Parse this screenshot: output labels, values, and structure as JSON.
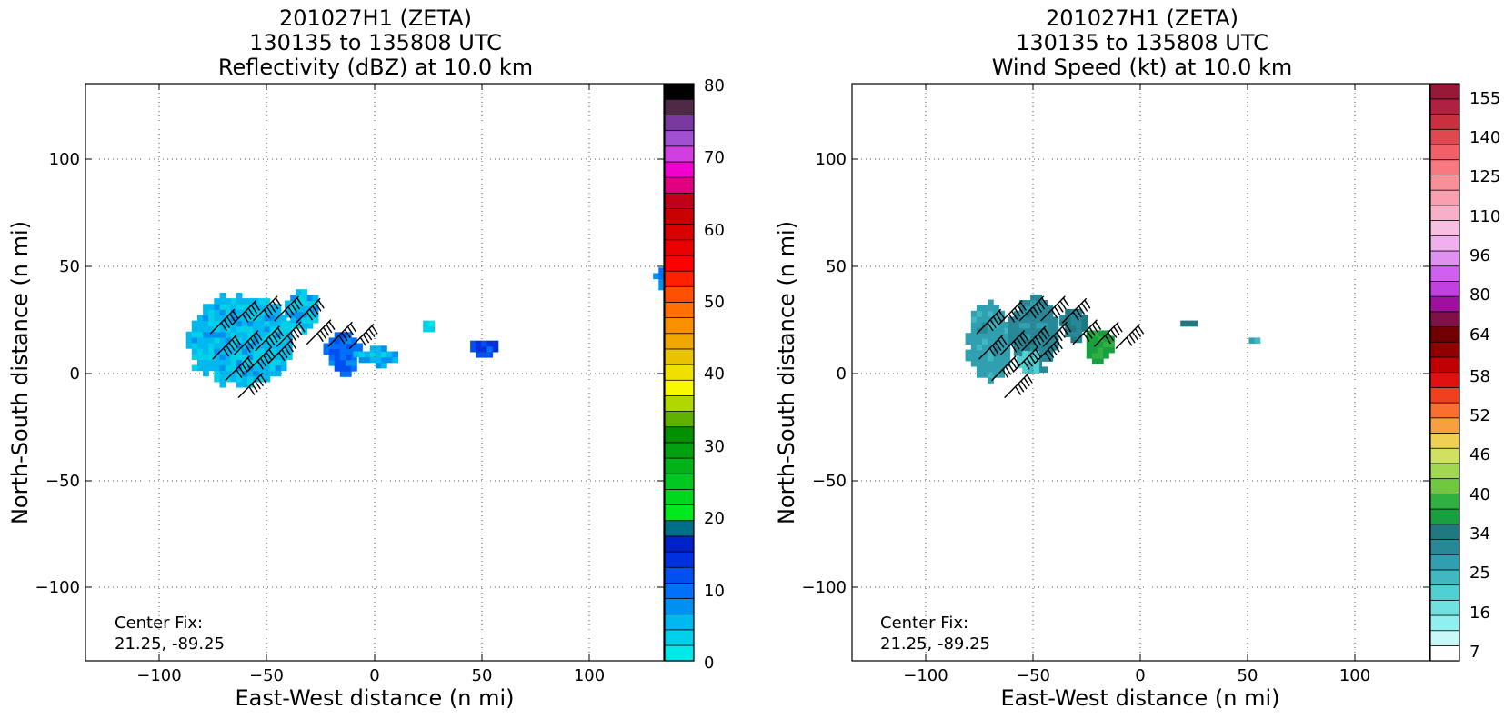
{
  "figure": {
    "panels": [
      {
        "title_lines": [
          "201027H1 (ZETA)",
          "130135 to 135808 UTC",
          "Reflectivity (dBZ) at 10.0 km"
        ],
        "xlabel": "East-West distance (n mi)",
        "ylabel": "North-South distance (n mi)",
        "x_ticks": [
          "−100",
          "−50",
          "0",
          "50",
          "100"
        ],
        "y_ticks": [
          "100",
          "50",
          "0",
          "−50",
          "−100"
        ],
        "center_fix": [
          "Center Fix:",
          "21.25, -89.25"
        ],
        "colorbar_labels": [
          "80",
          "70",
          "60",
          "50",
          "40",
          "30",
          "20",
          "10",
          "0"
        ]
      },
      {
        "title_lines": [
          "201027H1 (ZETA)",
          "130135 to 135808 UTC",
          "Wind Speed (kt) at 10.0 km"
        ],
        "xlabel": "East-West distance (n mi)",
        "ylabel": "North-South distance (n mi)",
        "x_ticks": [
          "−100",
          "−50",
          "0",
          "50",
          "100"
        ],
        "y_ticks": [
          "100",
          "50",
          "0",
          "−50",
          "−100"
        ],
        "center_fix": [
          "Center Fix:",
          "21.25, -89.25"
        ],
        "colorbar_labels": [
          "155",
          "140",
          "125",
          "110",
          "96",
          "80",
          "64",
          "58",
          "52",
          "46",
          "40",
          "34",
          "25",
          "16",
          "7"
        ]
      }
    ]
  },
  "chart_data": [
    {
      "type": "heatmap",
      "title": "201027H1 (ZETA) 130135 to 135808 UTC Reflectivity (dBZ) at 10.0 km",
      "xlabel": "East-West distance (n mi)",
      "ylabel": "North-South distance (n mi)",
      "xlim": [
        -135,
        135
      ],
      "ylim": [
        -135,
        135
      ],
      "x_ticks": [
        -100,
        -50,
        0,
        50,
        100
      ],
      "y_ticks": [
        -100,
        -50,
        0,
        50,
        100
      ],
      "grid": true,
      "colorbar": {
        "ticks": [
          0,
          10,
          20,
          30,
          40,
          50,
          60,
          70,
          80
        ],
        "colors": [
          "#00e8e8",
          "#00d0e8",
          "#00b8f0",
          "#0090f0",
          "#0070f8",
          "#0050f0",
          "#0030e0",
          "#0020c8",
          "#007088",
          "#00e820",
          "#00d820",
          "#00c820",
          "#00b418",
          "#00a010",
          "#009000",
          "#60b000",
          "#b0d800",
          "#f8f800",
          "#f0e000",
          "#e8c400",
          "#f0a800",
          "#f89000",
          "#ff7000",
          "#ff5000",
          "#ff2000",
          "#ff0000",
          "#e80000",
          "#d80000",
          "#c80000",
          "#c00018",
          "#e00080",
          "#f000d0",
          "#d040e0",
          "#a050d0",
          "#7838a0",
          "#502848",
          "#000000"
        ]
      },
      "echo_regions": [
        {
          "x": [
            -88,
            -40
          ],
          "y": [
            -7,
            35
          ],
          "dbz": 5
        },
        {
          "x": [
            -42,
            -28
          ],
          "y": [
            18,
            38
          ],
          "dbz": 5
        },
        {
          "x": [
            -24,
            -8
          ],
          "y": [
            -2,
            18
          ],
          "dbz": 10
        },
        {
          "x": [
            -10,
            10
          ],
          "y": [
            2,
            10
          ],
          "dbz": 6
        },
        {
          "x": [
            20,
            28
          ],
          "y": [
            19,
            22
          ],
          "dbz": 3
        },
        {
          "x": [
            42,
            58
          ],
          "y": [
            7,
            14
          ],
          "dbz": 12
        },
        {
          "x": [
            130,
            135
          ],
          "y": [
            36,
            48
          ],
          "dbz": 8
        }
      ],
      "wind_barbs": [
        {
          "x": -75,
          "y": 24
        },
        {
          "x": -65,
          "y": 28
        },
        {
          "x": -55,
          "y": 30
        },
        {
          "x": -45,
          "y": 30
        },
        {
          "x": -35,
          "y": 29
        },
        {
          "x": -74,
          "y": 12
        },
        {
          "x": -64,
          "y": 14
        },
        {
          "x": -54,
          "y": 16
        },
        {
          "x": -44,
          "y": 18
        },
        {
          "x": -68,
          "y": 2
        },
        {
          "x": -58,
          "y": 6
        },
        {
          "x": -48,
          "y": 10
        },
        {
          "x": -30,
          "y": 19
        },
        {
          "x": -20,
          "y": 18
        },
        {
          "x": -10,
          "y": 17
        },
        {
          "x": -62,
          "y": -6
        }
      ]
    },
    {
      "type": "heatmap",
      "title": "201027H1 (ZETA) 130135 to 135808 UTC Wind Speed (kt) at 10.0 km",
      "xlabel": "East-West distance (n mi)",
      "ylabel": "North-South distance (n mi)",
      "xlim": [
        -135,
        135
      ],
      "ylim": [
        -135,
        135
      ],
      "x_ticks": [
        -100,
        -50,
        0,
        50,
        100
      ],
      "y_ticks": [
        -100,
        -50,
        0,
        50,
        100
      ],
      "grid": true,
      "colorbar": {
        "ticks": [
          7,
          16,
          25,
          34,
          40,
          46,
          52,
          58,
          64,
          80,
          96,
          110,
          125,
          140,
          155
        ],
        "colors": [
          "#ffffff",
          "#c8f8f8",
          "#90f0f0",
          "#70e0e0",
          "#50d0d0",
          "#40b8c0",
          "#30a0b0",
          "#288898",
          "#207880",
          "#18a040",
          "#30b040",
          "#70c840",
          "#a0d850",
          "#d0e060",
          "#f0d050",
          "#f8a040",
          "#f87030",
          "#f04020",
          "#e01010",
          "#c00000",
          "#900000",
          "#700000",
          "#801048",
          "#a010a0",
          "#c040e0",
          "#d060f0",
          "#e090f0",
          "#f0b0f0",
          "#f8c0e0",
          "#f8b0c8",
          "#f8a0b0",
          "#f89098",
          "#f87880",
          "#f06068",
          "#e04850",
          "#c83040",
          "#b02040",
          "#981838"
        ]
      },
      "wind_regions": [
        {
          "x": [
            -82,
            -62
          ],
          "y": [
            -5,
            32
          ],
          "kt": 32
        },
        {
          "x": [
            -62,
            -40
          ],
          "y": [
            0,
            35
          ],
          "kt": 36
        },
        {
          "x": [
            -58,
            -48
          ],
          "y": [
            -3,
            10
          ],
          "kt": 25
        },
        {
          "x": [
            -38,
            -26
          ],
          "y": [
            14,
            30
          ],
          "kt": 38
        },
        {
          "x": [
            -28,
            -14
          ],
          "y": [
            4,
            18
          ],
          "kt": 45
        },
        {
          "x": [
            16,
            26
          ],
          "y": [
            19,
            23
          ],
          "kt": 40
        },
        {
          "x": [
            48,
            56
          ],
          "y": [
            11,
            15
          ],
          "kt": 30
        }
      ],
      "wind_barbs": [
        {
          "x": -75,
          "y": 24
        },
        {
          "x": -65,
          "y": 28
        },
        {
          "x": -55,
          "y": 30
        },
        {
          "x": -45,
          "y": 30
        },
        {
          "x": -35,
          "y": 29
        },
        {
          "x": -74,
          "y": 12
        },
        {
          "x": -64,
          "y": 14
        },
        {
          "x": -54,
          "y": 16
        },
        {
          "x": -44,
          "y": 18
        },
        {
          "x": -68,
          "y": 2
        },
        {
          "x": -58,
          "y": 6
        },
        {
          "x": -48,
          "y": 10
        },
        {
          "x": -30,
          "y": 19
        },
        {
          "x": -20,
          "y": 18
        },
        {
          "x": -10,
          "y": 17
        },
        {
          "x": -62,
          "y": -6
        }
      ]
    }
  ]
}
